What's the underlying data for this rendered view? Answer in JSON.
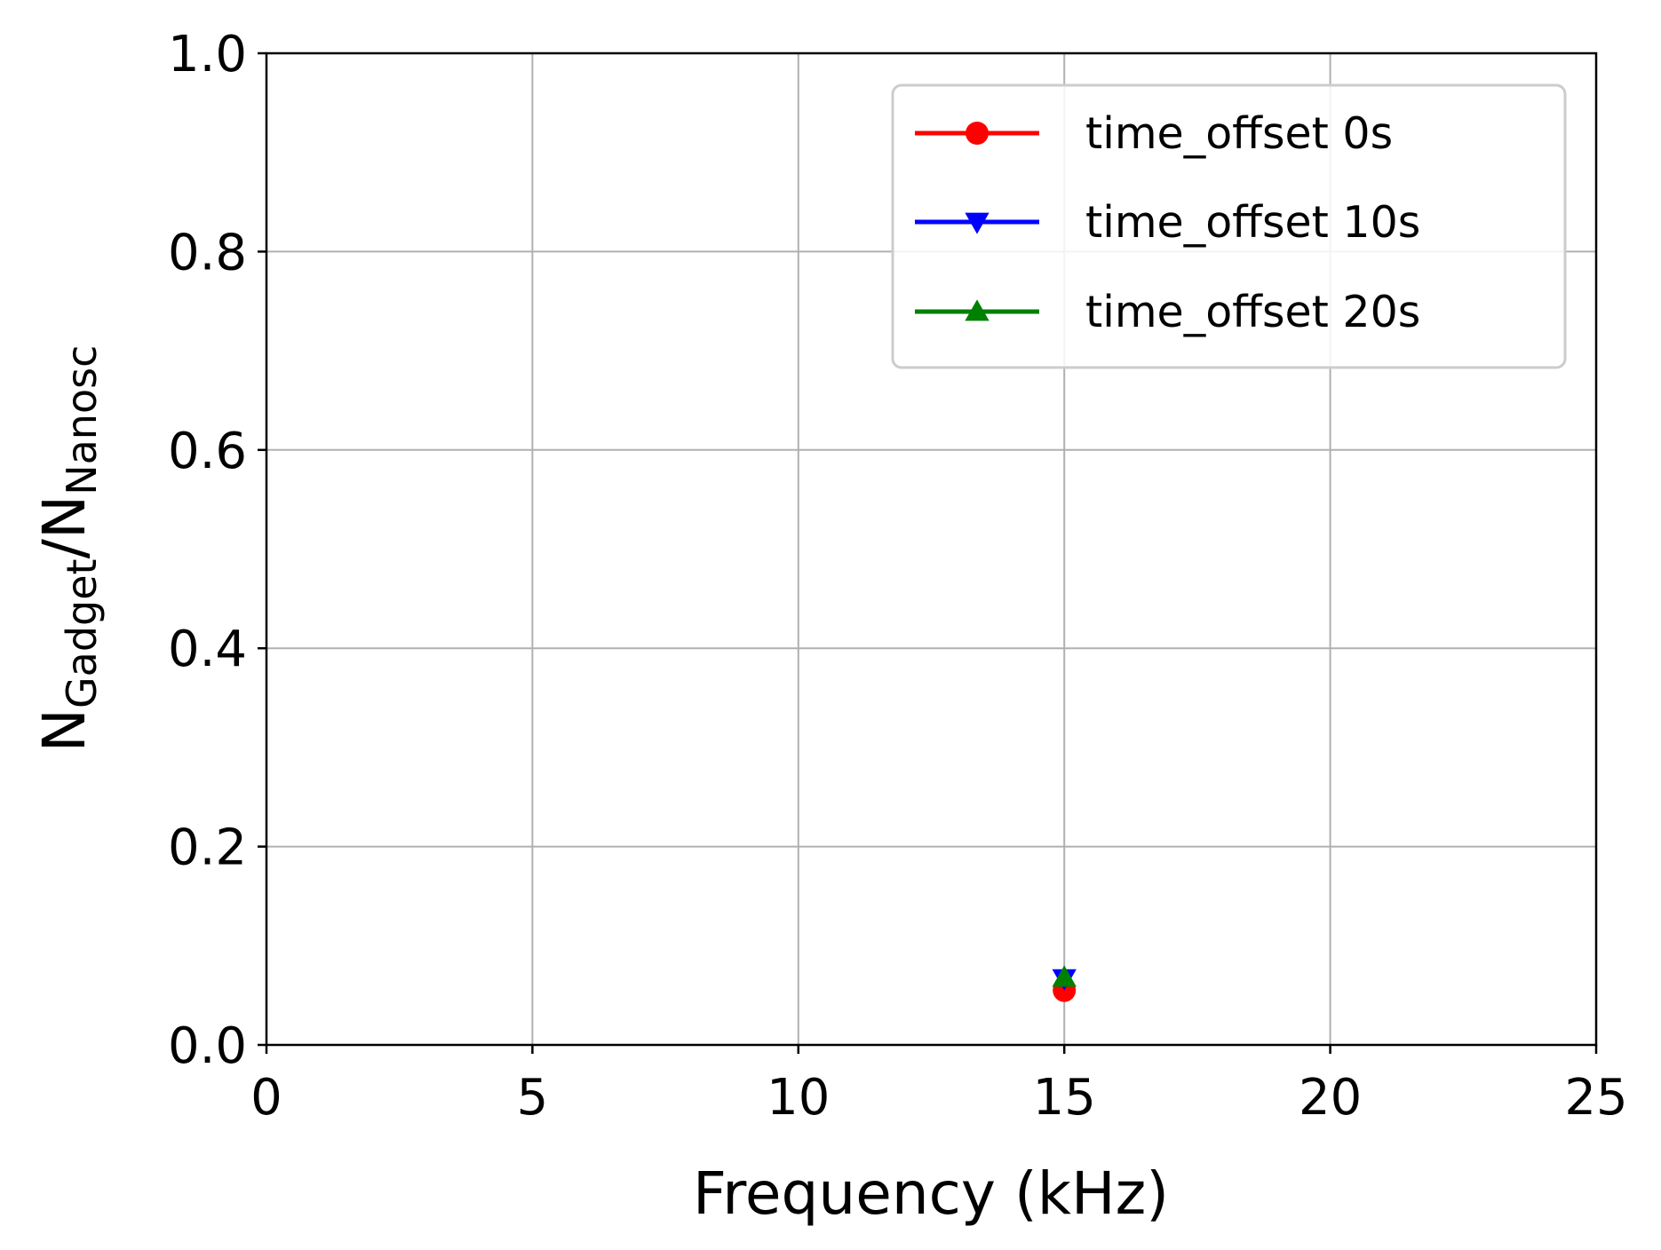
{
  "chart_data": {
    "type": "line",
    "title": "",
    "xlabel": "Frequency (kHz)",
    "ylabel": {
      "main": "N",
      "numerator_sub": "Gadget",
      "slash": "/",
      "denominator": "N",
      "denominator_sub": "Nanosc"
    },
    "xlim": [
      0,
      25
    ],
    "ylim": [
      0.0,
      1.0
    ],
    "xticks": [
      0,
      5,
      10,
      15,
      20,
      25
    ],
    "xtick_labels": [
      "0",
      "5",
      "10",
      "15",
      "20",
      "25"
    ],
    "yticks": [
      0.0,
      0.2,
      0.4,
      0.6,
      0.8,
      1.0
    ],
    "ytick_labels": [
      "0.0",
      "0.2",
      "0.4",
      "0.6",
      "0.8",
      "1.0"
    ],
    "grid": true,
    "legend_position": "top-right",
    "series": [
      {
        "name": "time_offset 0s",
        "color": "#ff0000",
        "marker": "circle",
        "x": [
          15
        ],
        "y": [
          0.055
        ]
      },
      {
        "name": "time_offset 10s",
        "color": "#0000ff",
        "marker": "triangle-down",
        "x": [
          15
        ],
        "y": [
          0.067
        ]
      },
      {
        "name": "time_offset 20s",
        "color": "#008000",
        "marker": "triangle-up",
        "x": [
          15
        ],
        "y": [
          0.068
        ]
      }
    ]
  }
}
